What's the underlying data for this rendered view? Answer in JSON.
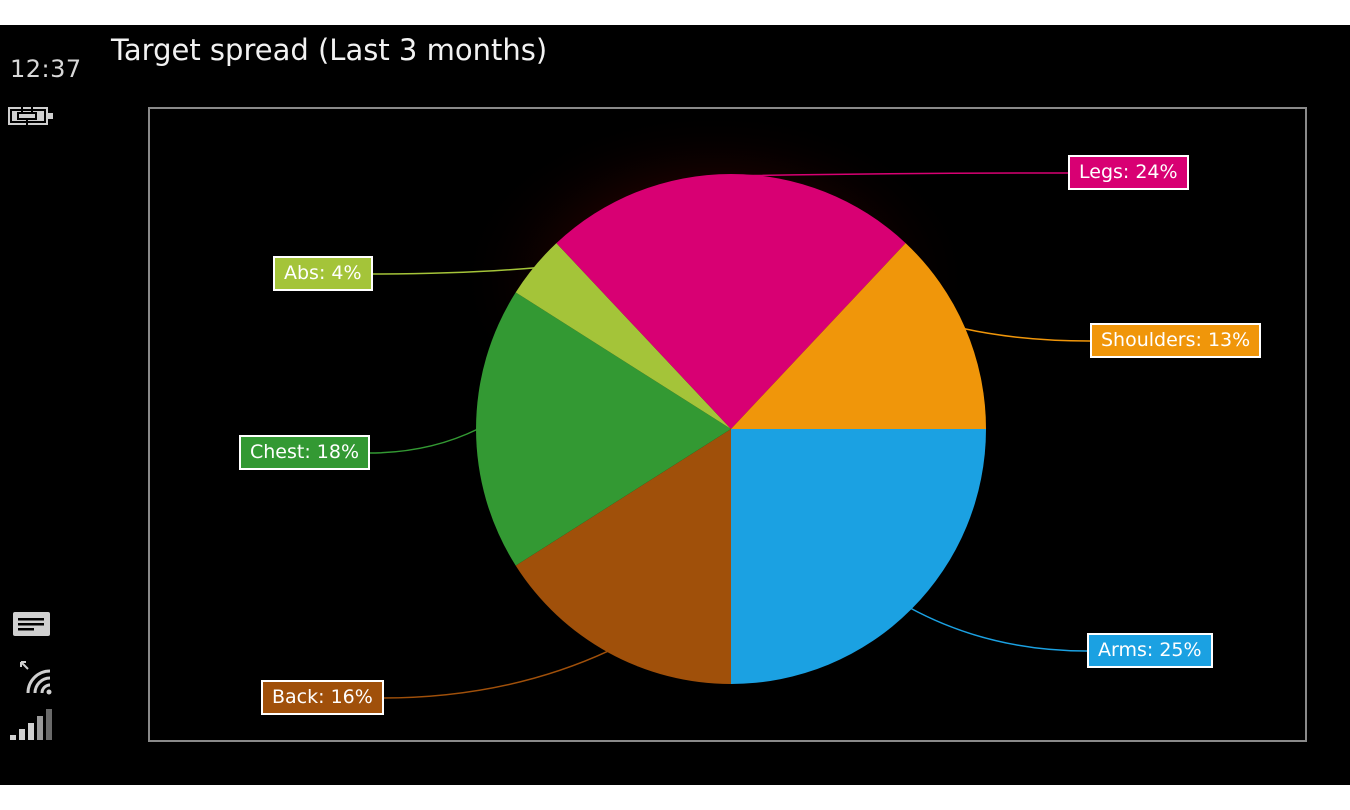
{
  "status": {
    "time": "12:37",
    "icons": [
      "battery-charging-icon",
      "message-icon",
      "wifi-icon",
      "signal-strength-icon"
    ]
  },
  "page": {
    "title": "Target spread (Last 3 months)"
  },
  "chart_data": {
    "type": "pie",
    "title": "Target spread (Last 3 months)",
    "start_angle_deg": 0,
    "direction": "clockwise",
    "series": [
      {
        "name": "Arms",
        "value": 25,
        "label": "Arms: 25%",
        "color": "#1ba1e2"
      },
      {
        "name": "Back",
        "value": 16,
        "label": "Back: 16%",
        "color": "#a0500a"
      },
      {
        "name": "Chest",
        "value": 18,
        "label": "Chest: 18%",
        "color": "#339933"
      },
      {
        "name": "Abs",
        "value": 4,
        "label": "Abs: 4%",
        "color": "#a4c439"
      },
      {
        "name": "Legs",
        "value": 24,
        "label": "Legs: 24%",
        "color": "#d80073"
      },
      {
        "name": "Shoulders",
        "value": 13,
        "label": "Shoulders: 13%",
        "color": "#f0960a"
      }
    ],
    "legend": "none"
  }
}
